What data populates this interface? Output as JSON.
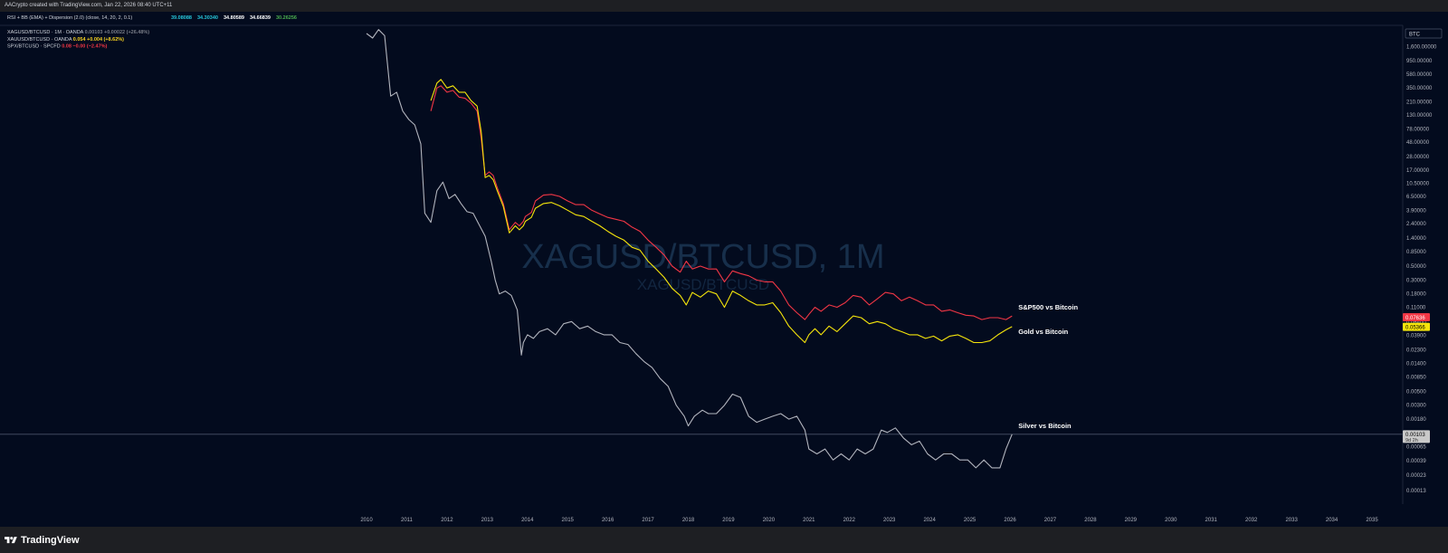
{
  "header": {
    "credit": "AACrypto created with TradingView.com, Jan 22, 2026 08:40 UTC+11"
  },
  "indicator": {
    "label": "RSI + BB (EMA) + Dispersion (2.0) (close, 14, 20, 2, 0.1)",
    "values": [
      {
        "text": "39.08088",
        "color": "#26c6da"
      },
      {
        "text": "34.30340",
        "color": "#26c6da"
      },
      {
        "text": "34.80589",
        "color": "#ffffff"
      },
      {
        "text": "34.66839",
        "color": "#ffffff"
      },
      {
        "text": "30.26256",
        "color": "#4caf50"
      }
    ]
  },
  "legend": [
    {
      "symbol": "XAGUSD/BTCUSD · 1M · OANDA",
      "value": "0.00103",
      "change": "+0.00022 (+26.48%)",
      "color": "#787b86"
    },
    {
      "symbol": "XAUUSD/BTCUSD · OANDA",
      "value": "0.054",
      "change": "+0.004 (+8.62%)",
      "color": "#f5d020"
    },
    {
      "symbol": "SPX/BTCUSD · SPCFD",
      "value": "0.08",
      "change": "−0.00 (−2.47%)",
      "color": "#f23645"
    }
  ],
  "currency_badge": "BTC",
  "watermark": {
    "title": "XAGUSD/BTCUSD, 1M",
    "subtitle": "XAGUSD/BTCUSD"
  },
  "price_badges": [
    {
      "text": "0.07636",
      "value": 0.07636,
      "bg": "#f23645",
      "fg": "#ffffff"
    },
    {
      "text": "0.05366",
      "value": 0.05366,
      "bg": "#f5e50b",
      "fg": "#000000"
    },
    {
      "text": "0.00103",
      "sub": "9d 2h",
      "value": 0.00103,
      "bg": "#c9c9c9",
      "fg": "#000000"
    }
  ],
  "footer": {
    "brand": "TradingView"
  },
  "chart_data": {
    "type": "line",
    "title": "XAGUSD/BTCUSD, 1M",
    "y_scale": "log",
    "ylim": [
      0.0001,
      3000
    ],
    "xlim": [
      2010,
      2035.4
    ],
    "y_tick_labels": [
      "2,600.00000",
      "1,600.00000",
      "950.00000",
      "580.00000",
      "350.00000",
      "210.00000",
      "130.00000",
      "78.00000",
      "48.00000",
      "28.00000",
      "17.00000",
      "10.50000",
      "6.50000",
      "3.90000",
      "2.40000",
      "1.40000",
      "0.85000",
      "0.50000",
      "0.30000",
      "0.18000",
      "0.11000",
      "0.06400",
      "0.03900",
      "0.02300",
      "0.01400",
      "0.00850",
      "0.00500",
      "0.00300",
      "0.00180",
      "0.00110",
      "0.00065",
      "0.00039",
      "0.00023",
      "0.00013"
    ],
    "x_tick_labels": [
      "2010",
      "2011",
      "2012",
      "2013",
      "2014",
      "2015",
      "2016",
      "2017",
      "2018",
      "2019",
      "2020",
      "2021",
      "2022",
      "2023",
      "2024",
      "2025",
      "2026",
      "2027",
      "2028",
      "2029",
      "2030",
      "2031",
      "2032",
      "2033",
      "2034",
      "2035"
    ],
    "crosshair_value": 0.00103,
    "series": [
      {
        "name": "S&P500 vs Bitcoin",
        "color": "#f23645",
        "x": [
          2011.6,
          2011.75,
          2011.85,
          2012.0,
          2012.15,
          2012.3,
          2012.45,
          2012.6,
          2012.75,
          2012.85,
          2012.95,
          2013.05,
          2013.15,
          2013.25,
          2013.4,
          2013.55,
          2013.7,
          2013.8,
          2013.9,
          2013.95,
          2014.1,
          2014.2,
          2014.4,
          2014.6,
          2014.8,
          2015.0,
          2015.2,
          2015.4,
          2015.6,
          2015.8,
          2016.0,
          2016.2,
          2016.4,
          2016.6,
          2016.8,
          2017.0,
          2017.2,
          2017.4,
          2017.6,
          2017.8,
          2017.95,
          2018.1,
          2018.3,
          2018.5,
          2018.7,
          2018.9,
          2019.1,
          2019.3,
          2019.5,
          2019.7,
          2019.9,
          2020.1,
          2020.3,
          2020.5,
          2020.7,
          2020.9,
          2021.0,
          2021.15,
          2021.3,
          2021.5,
          2021.7,
          2021.9,
          2022.1,
          2022.3,
          2022.5,
          2022.7,
          2022.9,
          2023.1,
          2023.3,
          2023.5,
          2023.7,
          2023.9,
          2024.1,
          2024.3,
          2024.5,
          2024.7,
          2024.9,
          2025.1,
          2025.3,
          2025.5,
          2025.7,
          2025.9,
          2026.05
        ],
        "values": [
          150,
          350,
          380,
          300,
          320,
          250,
          240,
          200,
          150,
          55,
          14,
          16,
          14,
          9,
          5,
          1.9,
          2.5,
          2.2,
          2.6,
          3.1,
          3.6,
          5.5,
          6.8,
          7,
          6.5,
          5.5,
          4.8,
          4.8,
          3.9,
          3.4,
          3.0,
          2.8,
          2.6,
          2.1,
          1.8,
          1.3,
          1.0,
          0.75,
          0.5,
          0.4,
          0.6,
          0.45,
          0.5,
          0.45,
          0.45,
          0.28,
          0.42,
          0.38,
          0.35,
          0.3,
          0.28,
          0.28,
          0.2,
          0.12,
          0.09,
          0.07,
          0.085,
          0.11,
          0.095,
          0.12,
          0.11,
          0.13,
          0.17,
          0.16,
          0.12,
          0.15,
          0.19,
          0.18,
          0.14,
          0.16,
          0.14,
          0.12,
          0.12,
          0.095,
          0.1,
          0.09,
          0.082,
          0.08,
          0.07,
          0.075,
          0.075,
          0.07,
          0.08
        ]
      },
      {
        "name": "Gold vs Bitcoin",
        "color": "#f5e50b",
        "x": [
          2011.6,
          2011.75,
          2011.85,
          2012.0,
          2012.15,
          2012.3,
          2012.45,
          2012.6,
          2012.75,
          2012.85,
          2012.95,
          2013.05,
          2013.15,
          2013.25,
          2013.4,
          2013.55,
          2013.7,
          2013.8,
          2013.9,
          2013.95,
          2014.1,
          2014.2,
          2014.4,
          2014.6,
          2014.8,
          2015.0,
          2015.2,
          2015.4,
          2015.6,
          2015.8,
          2016.0,
          2016.2,
          2016.4,
          2016.6,
          2016.8,
          2017.0,
          2017.2,
          2017.4,
          2017.6,
          2017.8,
          2017.95,
          2018.1,
          2018.3,
          2018.5,
          2018.7,
          2018.9,
          2019.1,
          2019.3,
          2019.5,
          2019.7,
          2019.9,
          2020.1,
          2020.3,
          2020.5,
          2020.7,
          2020.9,
          2021.0,
          2021.15,
          2021.3,
          2021.5,
          2021.7,
          2021.9,
          2022.1,
          2022.3,
          2022.5,
          2022.7,
          2022.9,
          2023.1,
          2023.3,
          2023.5,
          2023.7,
          2023.9,
          2024.1,
          2024.3,
          2024.5,
          2024.7,
          2024.9,
          2025.1,
          2025.3,
          2025.5,
          2025.7,
          2025.9,
          2026.05
        ],
        "values": [
          220,
          420,
          480,
          350,
          380,
          300,
          300,
          220,
          180,
          70,
          13,
          14,
          12,
          8,
          4.5,
          1.7,
          2.2,
          1.9,
          2.2,
          2.6,
          3.0,
          4.2,
          5.0,
          5.2,
          4.6,
          3.9,
          3.3,
          3.1,
          2.6,
          2.2,
          1.8,
          1.5,
          1.3,
          1.0,
          0.9,
          0.6,
          0.45,
          0.33,
          0.22,
          0.17,
          0.12,
          0.19,
          0.16,
          0.2,
          0.18,
          0.11,
          0.2,
          0.17,
          0.14,
          0.12,
          0.12,
          0.13,
          0.09,
          0.055,
          0.04,
          0.03,
          0.04,
          0.05,
          0.04,
          0.055,
          0.045,
          0.06,
          0.08,
          0.075,
          0.06,
          0.065,
          0.06,
          0.05,
          0.045,
          0.04,
          0.04,
          0.035,
          0.038,
          0.032,
          0.038,
          0.04,
          0.035,
          0.03,
          0.03,
          0.032,
          0.04,
          0.048,
          0.054
        ]
      },
      {
        "name": "Silver vs Bitcoin",
        "color": "#b2b5be",
        "x": [
          2010.0,
          2010.15,
          2010.3,
          2010.45,
          2010.6,
          2010.75,
          2010.9,
          2011.05,
          2011.2,
          2011.35,
          2011.45,
          2011.6,
          2011.75,
          2011.9,
          2012.05,
          2012.2,
          2012.35,
          2012.5,
          2012.65,
          2012.8,
          2012.95,
          2013.1,
          2013.2,
          2013.3,
          2013.45,
          2013.6,
          2013.75,
          2013.85,
          2013.9,
          2014.0,
          2014.15,
          2014.3,
          2014.5,
          2014.7,
          2014.9,
          2015.1,
          2015.3,
          2015.5,
          2015.7,
          2015.9,
          2016.1,
          2016.3,
          2016.5,
          2016.7,
          2016.9,
          2017.1,
          2017.3,
          2017.5,
          2017.7,
          2017.9,
          2018.0,
          2018.15,
          2018.35,
          2018.5,
          2018.7,
          2018.9,
          2019.1,
          2019.3,
          2019.5,
          2019.7,
          2019.9,
          2020.1,
          2020.3,
          2020.5,
          2020.7,
          2020.9,
          2021.0,
          2021.2,
          2021.4,
          2021.6,
          2021.8,
          2022.0,
          2022.2,
          2022.4,
          2022.6,
          2022.8,
          2022.95,
          2023.15,
          2023.35,
          2023.55,
          2023.75,
          2023.95,
          2024.15,
          2024.35,
          2024.55,
          2024.75,
          2024.95,
          2025.15,
          2025.35,
          2025.55,
          2025.75,
          2025.9,
          2026.05
        ],
        "values": [
          2600,
          2200,
          3000,
          2400,
          260,
          300,
          150,
          110,
          90,
          45,
          3.5,
          2.5,
          8,
          11,
          6,
          7,
          5,
          3.7,
          3.5,
          2.3,
          1.5,
          0.6,
          0.3,
          0.18,
          0.2,
          0.17,
          0.1,
          0.019,
          0.03,
          0.04,
          0.035,
          0.045,
          0.05,
          0.04,
          0.06,
          0.065,
          0.05,
          0.055,
          0.045,
          0.04,
          0.04,
          0.03,
          0.028,
          0.02,
          0.015,
          0.012,
          0.008,
          0.006,
          0.003,
          0.002,
          0.0014,
          0.002,
          0.0025,
          0.0022,
          0.0022,
          0.003,
          0.0045,
          0.004,
          0.002,
          0.0016,
          0.0018,
          0.002,
          0.0022,
          0.0018,
          0.002,
          0.0012,
          0.0006,
          0.0005,
          0.0006,
          0.0004,
          0.0005,
          0.0004,
          0.0006,
          0.0005,
          0.0006,
          0.0012,
          0.0011,
          0.0013,
          0.0009,
          0.0007,
          0.0008,
          0.0005,
          0.0004,
          0.0005,
          0.0005,
          0.0004,
          0.0004,
          0.0003,
          0.0004,
          0.0003,
          0.0003,
          0.0006,
          0.00103
        ]
      }
    ]
  }
}
